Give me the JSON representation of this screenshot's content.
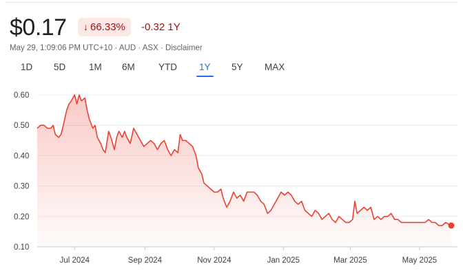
{
  "quote": {
    "price": "$0.17",
    "badge_arrow": "↓",
    "change_percent": "66.33%",
    "change_value": "-0.32 1Y",
    "timestamp": "May 29, 1:09:06 PM UTC+10",
    "currency": "AUD",
    "exchange": "ASX",
    "disclaimer": "Disclaimer",
    "separator": "·",
    "negative_color": "#a50e0e",
    "negative_bg": "#fce8e6"
  },
  "tabs": [
    {
      "label": "1D",
      "active": false
    },
    {
      "label": "5D",
      "active": false
    },
    {
      "label": "1M",
      "active": false
    },
    {
      "label": "6M",
      "active": false
    },
    {
      "label": "YTD",
      "active": false
    },
    {
      "label": "1Y",
      "active": true
    },
    {
      "label": "5Y",
      "active": false
    },
    {
      "label": "MAX",
      "active": false
    }
  ],
  "chart_data": {
    "type": "area",
    "line_color": "#e94235",
    "fill_color": "#e94235",
    "grid": true,
    "ylim": [
      0.1,
      0.62
    ],
    "yticks": [
      "0.60",
      "0.50",
      "0.40",
      "0.30",
      "0.20",
      "0.10"
    ],
    "ytick_values": [
      0.6,
      0.5,
      0.4,
      0.3,
      0.2,
      0.1
    ],
    "xticks": [
      "Jul 2024",
      "Sep 2024",
      "Nov 2024",
      "Jan 2025",
      "Mar 2025",
      "May 2025"
    ],
    "xtick_dates": [
      "2024-07-01",
      "2024-09-01",
      "2024-11-01",
      "2025-01-01",
      "2025-03-01",
      "2025-05-01"
    ],
    "x_range": [
      "2024-05-29",
      "2025-05-29"
    ],
    "series": [
      {
        "points": [
          [
            "2024-05-29",
            0.49
          ],
          [
            "2024-06-01",
            0.5
          ],
          [
            "2024-06-04",
            0.5
          ],
          [
            "2024-06-07",
            0.49
          ],
          [
            "2024-06-10",
            0.49
          ],
          [
            "2024-06-12",
            0.5
          ],
          [
            "2024-06-14",
            0.47
          ],
          [
            "2024-06-17",
            0.46
          ],
          [
            "2024-06-19",
            0.47
          ],
          [
            "2024-06-21",
            0.5
          ],
          [
            "2024-06-24",
            0.55
          ],
          [
            "2024-06-26",
            0.57
          ],
          [
            "2024-06-28",
            0.58
          ],
          [
            "2024-07-01",
            0.6
          ],
          [
            "2024-07-03",
            0.57
          ],
          [
            "2024-07-05",
            0.6
          ],
          [
            "2024-07-07",
            0.58
          ],
          [
            "2024-07-10",
            0.59
          ],
          [
            "2024-07-12",
            0.55
          ],
          [
            "2024-07-14",
            0.52
          ],
          [
            "2024-07-17",
            0.49
          ],
          [
            "2024-07-19",
            0.5
          ],
          [
            "2024-07-21",
            0.46
          ],
          [
            "2024-07-24",
            0.44
          ],
          [
            "2024-07-26",
            0.42
          ],
          [
            "2024-07-28",
            0.41
          ],
          [
            "2024-07-31",
            0.48
          ],
          [
            "2024-08-02",
            0.46
          ],
          [
            "2024-08-05",
            0.42
          ],
          [
            "2024-08-07",
            0.46
          ],
          [
            "2024-08-09",
            0.48
          ],
          [
            "2024-08-12",
            0.46
          ],
          [
            "2024-08-14",
            0.48
          ],
          [
            "2024-08-16",
            0.46
          ],
          [
            "2024-08-19",
            0.44
          ],
          [
            "2024-08-22",
            0.49
          ],
          [
            "2024-08-25",
            0.47
          ],
          [
            "2024-08-28",
            0.45
          ],
          [
            "2024-08-31",
            0.43
          ],
          [
            "2024-09-03",
            0.44
          ],
          [
            "2024-09-06",
            0.45
          ],
          [
            "2024-09-09",
            0.44
          ],
          [
            "2024-09-12",
            0.42
          ],
          [
            "2024-09-15",
            0.44
          ],
          [
            "2024-09-18",
            0.45
          ],
          [
            "2024-09-21",
            0.42
          ],
          [
            "2024-09-24",
            0.4
          ],
          [
            "2024-09-27",
            0.42
          ],
          [
            "2024-09-30",
            0.41
          ],
          [
            "2024-10-02",
            0.47
          ],
          [
            "2024-10-04",
            0.45
          ],
          [
            "2024-10-07",
            0.45
          ],
          [
            "2024-10-10",
            0.44
          ],
          [
            "2024-10-13",
            0.43
          ],
          [
            "2024-10-16",
            0.4
          ],
          [
            "2024-10-18",
            0.36
          ],
          [
            "2024-10-21",
            0.34
          ],
          [
            "2024-10-23",
            0.31
          ],
          [
            "2024-10-26",
            0.3
          ],
          [
            "2024-10-29",
            0.29
          ],
          [
            "2024-11-01",
            0.28
          ],
          [
            "2024-11-04",
            0.28
          ],
          [
            "2024-11-07",
            0.29
          ],
          [
            "2024-11-09",
            0.26
          ],
          [
            "2024-11-12",
            0.23
          ],
          [
            "2024-11-15",
            0.25
          ],
          [
            "2024-11-18",
            0.28
          ],
          [
            "2024-11-21",
            0.26
          ],
          [
            "2024-11-24",
            0.27
          ],
          [
            "2024-11-27",
            0.25
          ],
          [
            "2024-11-30",
            0.28
          ],
          [
            "2024-12-03",
            0.28
          ],
          [
            "2024-12-06",
            0.28
          ],
          [
            "2024-12-09",
            0.27
          ],
          [
            "2024-12-12",
            0.25
          ],
          [
            "2024-12-15",
            0.24
          ],
          [
            "2024-12-18",
            0.21
          ],
          [
            "2024-12-21",
            0.22
          ],
          [
            "2024-12-24",
            0.24
          ],
          [
            "2024-12-27",
            0.26
          ],
          [
            "2024-12-30",
            0.28
          ],
          [
            "2025-01-02",
            0.27
          ],
          [
            "2025-01-05",
            0.28
          ],
          [
            "2025-01-08",
            0.27
          ],
          [
            "2025-01-11",
            0.25
          ],
          [
            "2025-01-14",
            0.24
          ],
          [
            "2025-01-17",
            0.25
          ],
          [
            "2025-01-20",
            0.22
          ],
          [
            "2025-01-23",
            0.21
          ],
          [
            "2025-01-26",
            0.2
          ],
          [
            "2025-01-29",
            0.22
          ],
          [
            "2025-02-01",
            0.21
          ],
          [
            "2025-02-04",
            0.19
          ],
          [
            "2025-02-07",
            0.2
          ],
          [
            "2025-02-10",
            0.21
          ],
          [
            "2025-02-13",
            0.19
          ],
          [
            "2025-02-16",
            0.18
          ],
          [
            "2025-02-19",
            0.2
          ],
          [
            "2025-02-22",
            0.19
          ],
          [
            "2025-02-25",
            0.18
          ],
          [
            "2025-02-28",
            0.18
          ],
          [
            "2025-03-03",
            0.19
          ],
          [
            "2025-03-05",
            0.25
          ],
          [
            "2025-03-07",
            0.21
          ],
          [
            "2025-03-10",
            0.22
          ],
          [
            "2025-03-13",
            0.23
          ],
          [
            "2025-03-16",
            0.22
          ],
          [
            "2025-03-19",
            0.23
          ],
          [
            "2025-03-22",
            0.19
          ],
          [
            "2025-03-25",
            0.2
          ],
          [
            "2025-03-28",
            0.19
          ],
          [
            "2025-03-31",
            0.2
          ],
          [
            "2025-04-03",
            0.2
          ],
          [
            "2025-04-06",
            0.21
          ],
          [
            "2025-04-09",
            0.19
          ],
          [
            "2025-04-12",
            0.19
          ],
          [
            "2025-04-15",
            0.18
          ],
          [
            "2025-04-18",
            0.18
          ],
          [
            "2025-04-21",
            0.18
          ],
          [
            "2025-04-24",
            0.18
          ],
          [
            "2025-04-27",
            0.18
          ],
          [
            "2025-04-30",
            0.18
          ],
          [
            "2025-05-03",
            0.18
          ],
          [
            "2025-05-06",
            0.18
          ],
          [
            "2025-05-09",
            0.19
          ],
          [
            "2025-05-12",
            0.18
          ],
          [
            "2025-05-15",
            0.18
          ],
          [
            "2025-05-18",
            0.17
          ],
          [
            "2025-05-21",
            0.17
          ],
          [
            "2025-05-24",
            0.18
          ],
          [
            "2025-05-29",
            0.17
          ]
        ]
      }
    ]
  }
}
